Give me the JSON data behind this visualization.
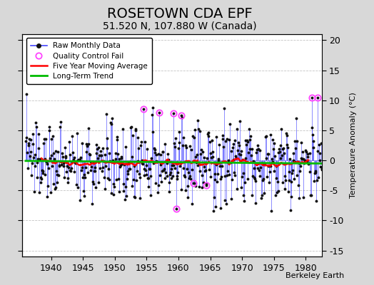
{
  "title": "ROSETOWN CDA EPF",
  "subtitle": "51.520 N, 107.880 W (Canada)",
  "ylabel": "Temperature Anomaly (°C)",
  "xlim": [
    1935.5,
    1982.5
  ],
  "ylim": [
    -16,
    21
  ],
  "yticks": [
    -15,
    -10,
    -5,
    0,
    5,
    10,
    15,
    20
  ],
  "xticks": [
    1940,
    1945,
    1950,
    1955,
    1960,
    1965,
    1970,
    1975,
    1980
  ],
  "background_color": "#d8d8d8",
  "plot_background": "#ffffff",
  "title_fontsize": 14,
  "subtitle_fontsize": 10,
  "raw_color": "#4444ff",
  "dot_color": "#111111",
  "qc_color": "#ff44ff",
  "moving_avg_color": "#ff0000",
  "trend_color": "#00bb00",
  "seed": 137
}
